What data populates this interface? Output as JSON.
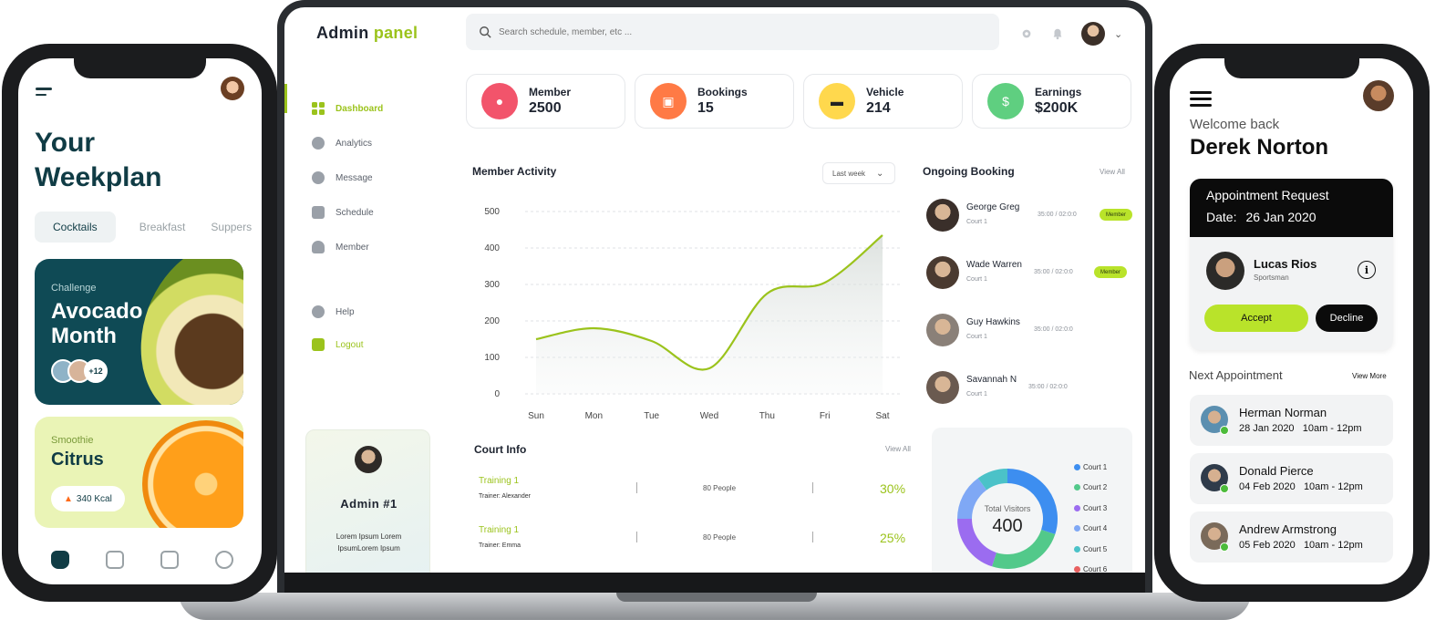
{
  "admin": {
    "brand": {
      "main": "Admin",
      "accent": "panel"
    },
    "search": {
      "placeholder": "Search schedule, member, etc ..."
    },
    "nav": [
      {
        "label": "Dashboard",
        "icon": "grid-icon",
        "active": true
      },
      {
        "label": "Analytics",
        "icon": "pie-chart-icon"
      },
      {
        "label": "Message",
        "icon": "chat-icon"
      },
      {
        "label": "Schedule",
        "icon": "calendar-icon"
      },
      {
        "label": "Member",
        "icon": "users-icon"
      }
    ],
    "nav_bottom": [
      {
        "label": "Help",
        "icon": "help-icon"
      },
      {
        "label": "Logout",
        "icon": "logout-icon"
      }
    ],
    "stats": [
      {
        "label": "Member",
        "value": "2500",
        "icon": "users-icon",
        "color": "#f2546b"
      },
      {
        "label": "Bookings",
        "value": "15",
        "icon": "calendar-icon",
        "color": "#ff7a45"
      },
      {
        "label": "Vehicle",
        "value": "214",
        "icon": "car-icon",
        "color": "#ffd84d"
      },
      {
        "label": "Earnings",
        "value": "$200K",
        "icon": "dollar-icon",
        "color": "#5fcf80"
      }
    ],
    "member_activity": {
      "title": "Member Activity",
      "range": "Last week"
    },
    "ongoing": {
      "title": "Ongoing Booking",
      "view_all": "View All",
      "items": [
        {
          "name": "George Greg",
          "court": "Court 1",
          "time": "35:00 / 02:0:0",
          "badge": "Member"
        },
        {
          "name": "Wade Warren",
          "court": "Court 1",
          "time": "35:00 / 02:0:0",
          "badge": "Member"
        },
        {
          "name": "Guy Hawkins",
          "court": "Court 1",
          "time": "35:00 / 02:0:0",
          "badge": ""
        },
        {
          "name": "Savannah N",
          "court": "Court 1",
          "time": "35:00 / 02:0:0",
          "badge": ""
        }
      ]
    },
    "admin_card": {
      "name": "Admin #1",
      "desc": "Lorem Ipsum Lorem IpsumLorem Ipsum"
    },
    "court_info": {
      "title": "Court Info",
      "view_all": "View All",
      "rows": [
        {
          "name": "Training 1",
          "trainer": "Trainer: Alexander",
          "people": "80 People",
          "pct": "30%"
        },
        {
          "name": "Training 1",
          "trainer": "Trainer: Emma",
          "people": "80 People",
          "pct": "25%"
        }
      ]
    },
    "visitors": {
      "label": "Total Visitors",
      "value": "400",
      "legend": [
        {
          "name": "Court 1",
          "color": "#3d8ef0"
        },
        {
          "name": "Court 2",
          "color": "#52c98a"
        },
        {
          "name": "Court 3",
          "color": "#9b6cf0"
        },
        {
          "name": "Court 4",
          "color": "#7fa8f5"
        },
        {
          "name": "Court 5",
          "color": "#4bc2c8"
        },
        {
          "name": "Court 6",
          "color": "#e86060"
        }
      ]
    }
  },
  "chart_data": [
    {
      "type": "line",
      "title": "Member Activity",
      "x": [
        "Sun",
        "Mon",
        "Tue",
        "Wed",
        "Thu",
        "Fri",
        "Sat"
      ],
      "series": [
        {
          "values": [
            150,
            180,
            145,
            70,
            275,
            305,
            435
          ]
        }
      ],
      "ylim": [
        0,
        500
      ],
      "yticks": [
        0,
        100,
        200,
        300,
        400,
        500
      ],
      "grid": true,
      "color": "#9bc31c"
    },
    {
      "type": "pie",
      "title": "Total Visitors",
      "categories": [
        "Court 1",
        "Court 2",
        "Court 3",
        "Court 4",
        "Court 5",
        "Court 6"
      ],
      "values": [
        30,
        25,
        20,
        15,
        10,
        0
      ],
      "colors": [
        "#3d8ef0",
        "#52c98a",
        "#9b6cf0",
        "#7fa8f5",
        "#4bc2c8",
        "#e86060"
      ]
    }
  ],
  "weekplan": {
    "title_line1": "Your",
    "title_line2": "Weekplan",
    "tabs": [
      "Cocktails",
      "Breakfast",
      "Suppers"
    ],
    "card1": {
      "small": "Challenge",
      "big1": "Avocado",
      "big2": "Month",
      "count": "+12"
    },
    "card2": {
      "small": "Smoothie",
      "big": "Citrus",
      "kcal": "340 Kcal"
    }
  },
  "appointments": {
    "welcome": "Welcome back",
    "user": "Derek Norton",
    "request": {
      "title": "Appointment Request",
      "date_label": "Date:",
      "date": "26 Jan 2020",
      "person": "Lucas Rios",
      "role": "Sportsman",
      "accept": "Accept",
      "decline": "Decline"
    },
    "next_title": "Next Appointment",
    "view_more": "View More",
    "next": [
      {
        "name": "Herman Norman",
        "when": "28 Jan 2020   10am - 12pm"
      },
      {
        "name": "Donald Pierce",
        "when": "04 Feb 2020   10am - 12pm"
      },
      {
        "name": "Andrew Armstrong",
        "when": "05 Feb 2020   10am - 12pm"
      }
    ]
  }
}
